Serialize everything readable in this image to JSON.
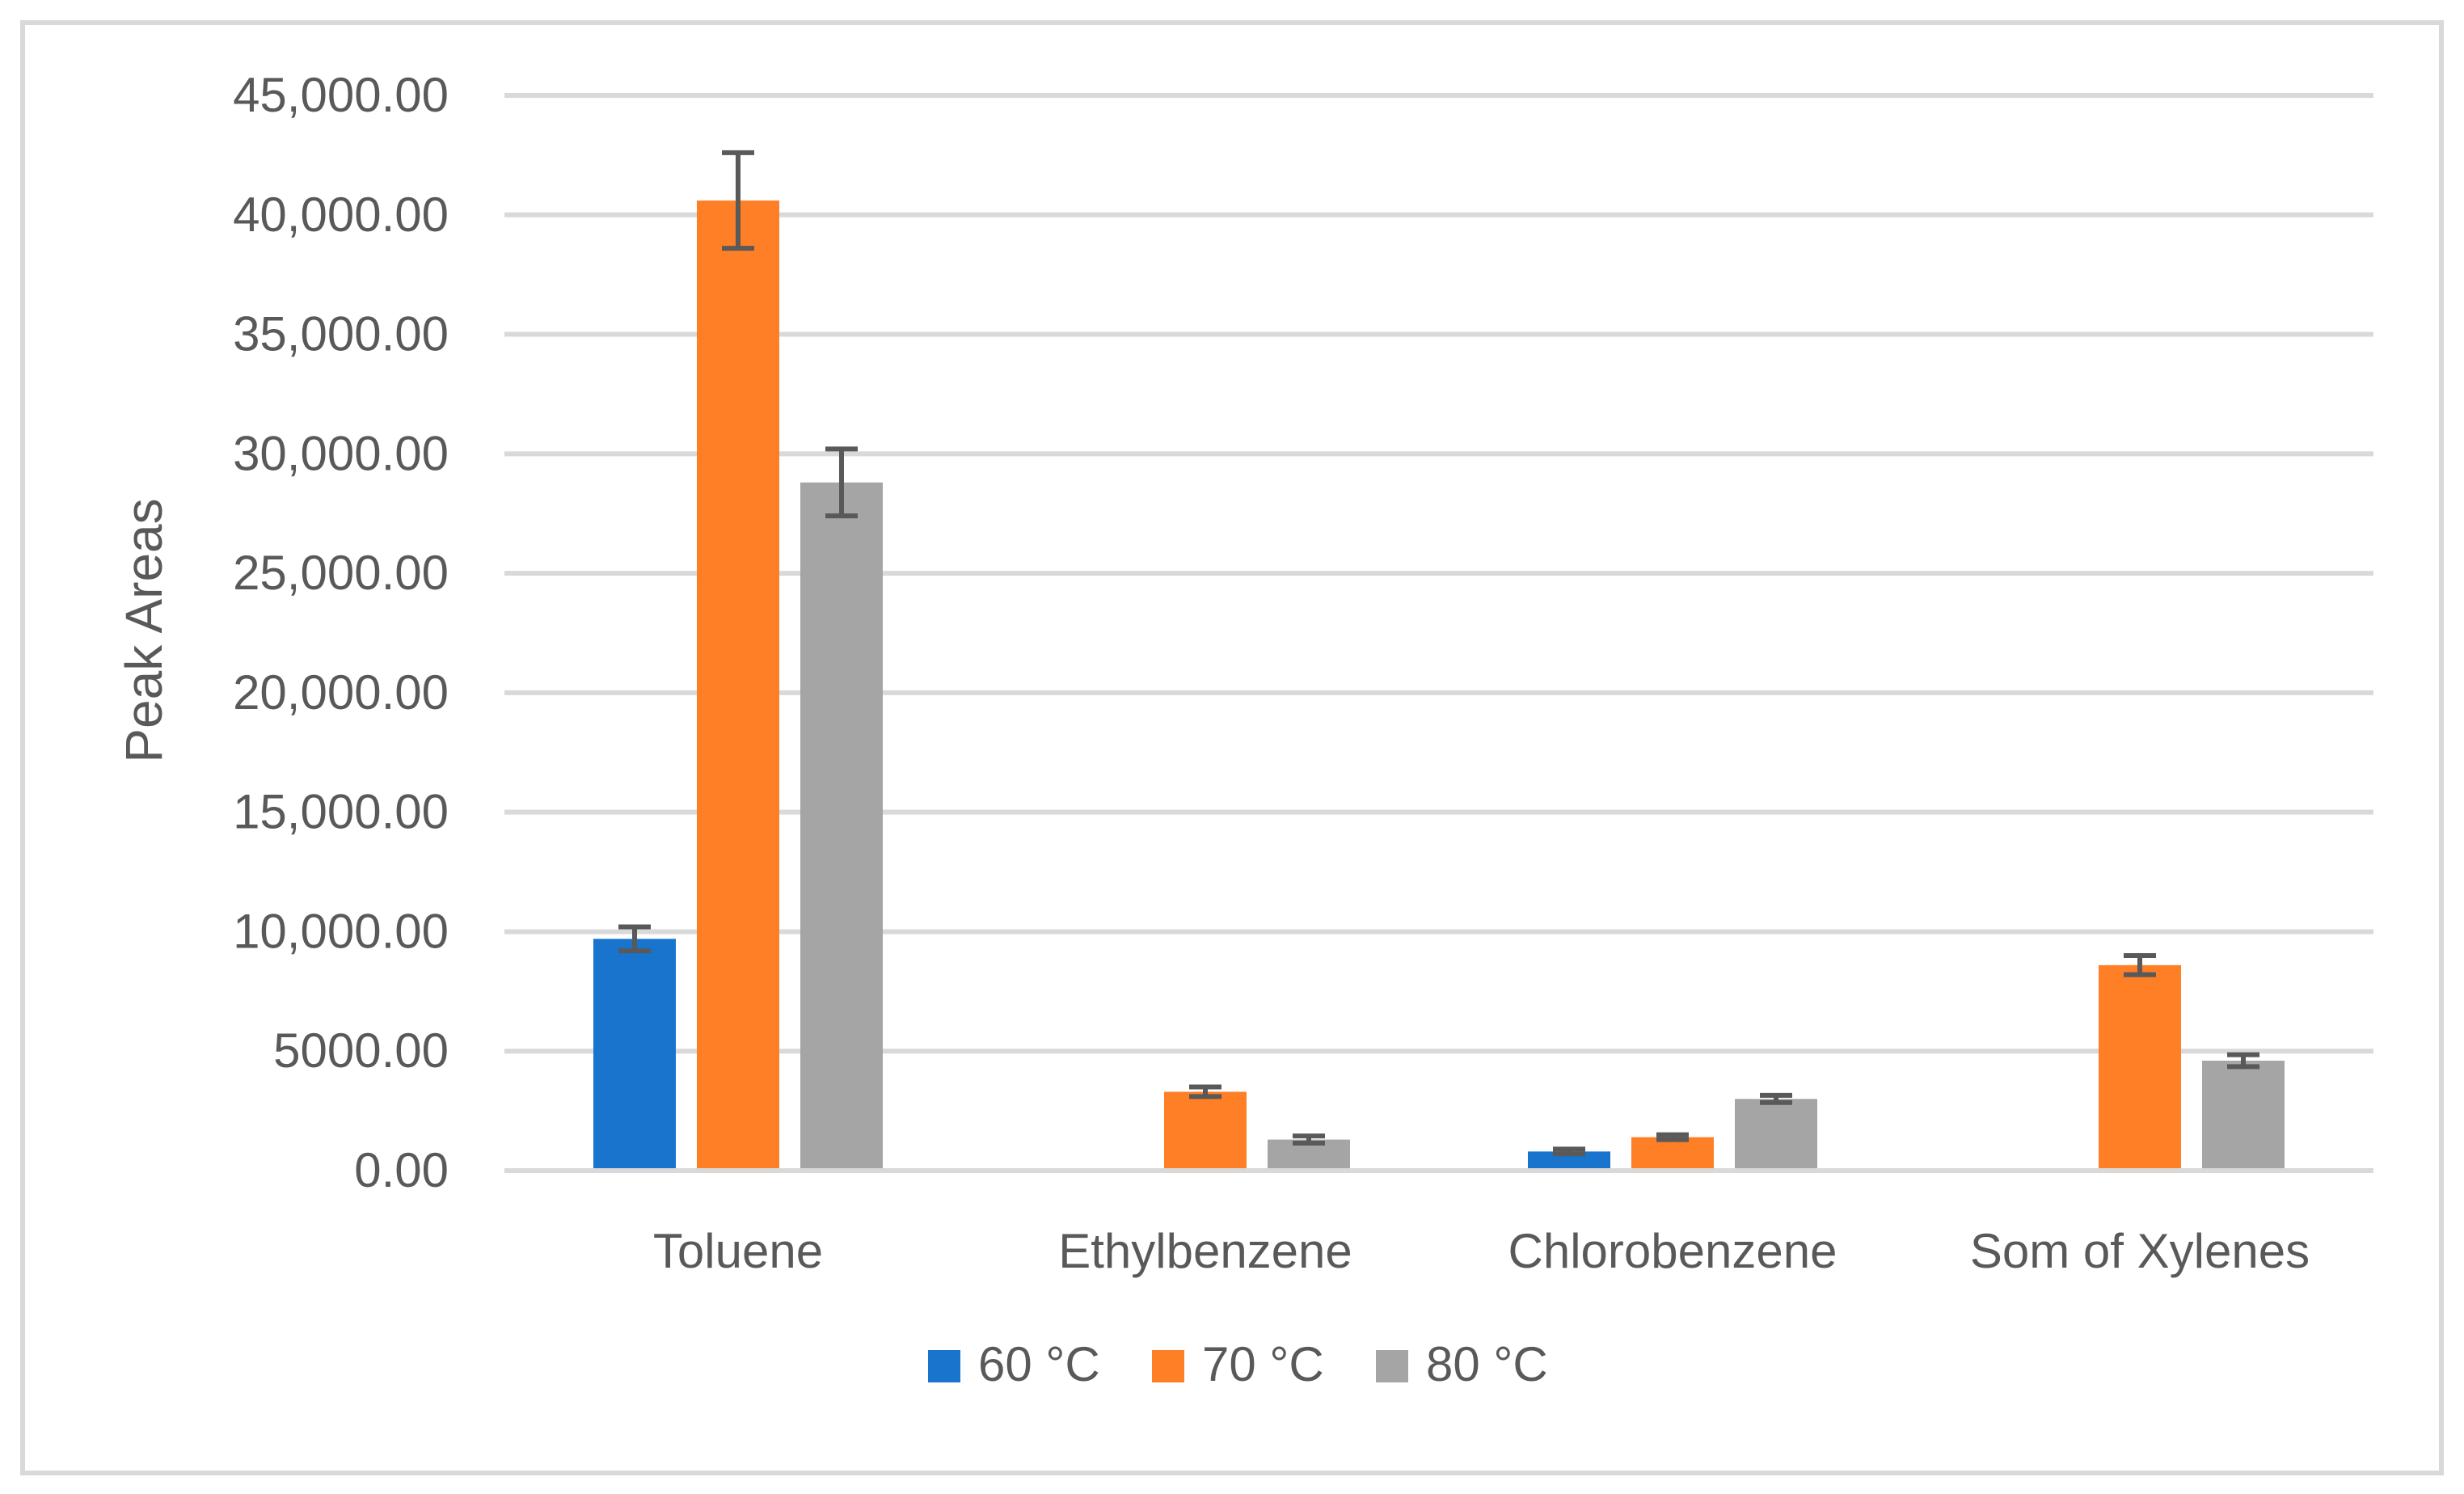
{
  "chart_data": {
    "type": "bar",
    "title": "",
    "xlabel": "",
    "ylabel": "Peak Areas",
    "categories": [
      "Toluene",
      "Ethylbenzene",
      "Chlorobenzene",
      "Som of Xylenes"
    ],
    "series": [
      {
        "name": "60 °C",
        "color": "#1874CD",
        "values": [
          9700,
          0,
          800,
          0
        ],
        "errors": [
          500,
          0,
          100,
          0
        ]
      },
      {
        "name": "70 °C",
        "color": "#FF7F27",
        "values": [
          40600,
          3300,
          1400,
          8600
        ],
        "errors": [
          2000,
          200,
          100,
          400
        ]
      },
      {
        "name": "80 °C",
        "color": "#A5A5A5",
        "values": [
          28800,
          1300,
          3000,
          4600
        ],
        "errors": [
          1400,
          150,
          150,
          250
        ]
      }
    ],
    "ylim": [
      0,
      45000
    ],
    "yticks": [
      0,
      5000,
      10000,
      15000,
      20000,
      25000,
      30000,
      35000,
      40000,
      45000
    ],
    "ytick_labels": [
      "0.00",
      "5000.00",
      "10,000.00",
      "15,000.00",
      "20,000.00",
      "25,000.00",
      "30,000.00",
      "35,000.00",
      "40,000.00",
      "45,000.00"
    ],
    "grid": true,
    "error_bars": true,
    "legend": {
      "position": "bottom",
      "entries": [
        "60 °C",
        "70 °C",
        "80 °C"
      ]
    }
  }
}
